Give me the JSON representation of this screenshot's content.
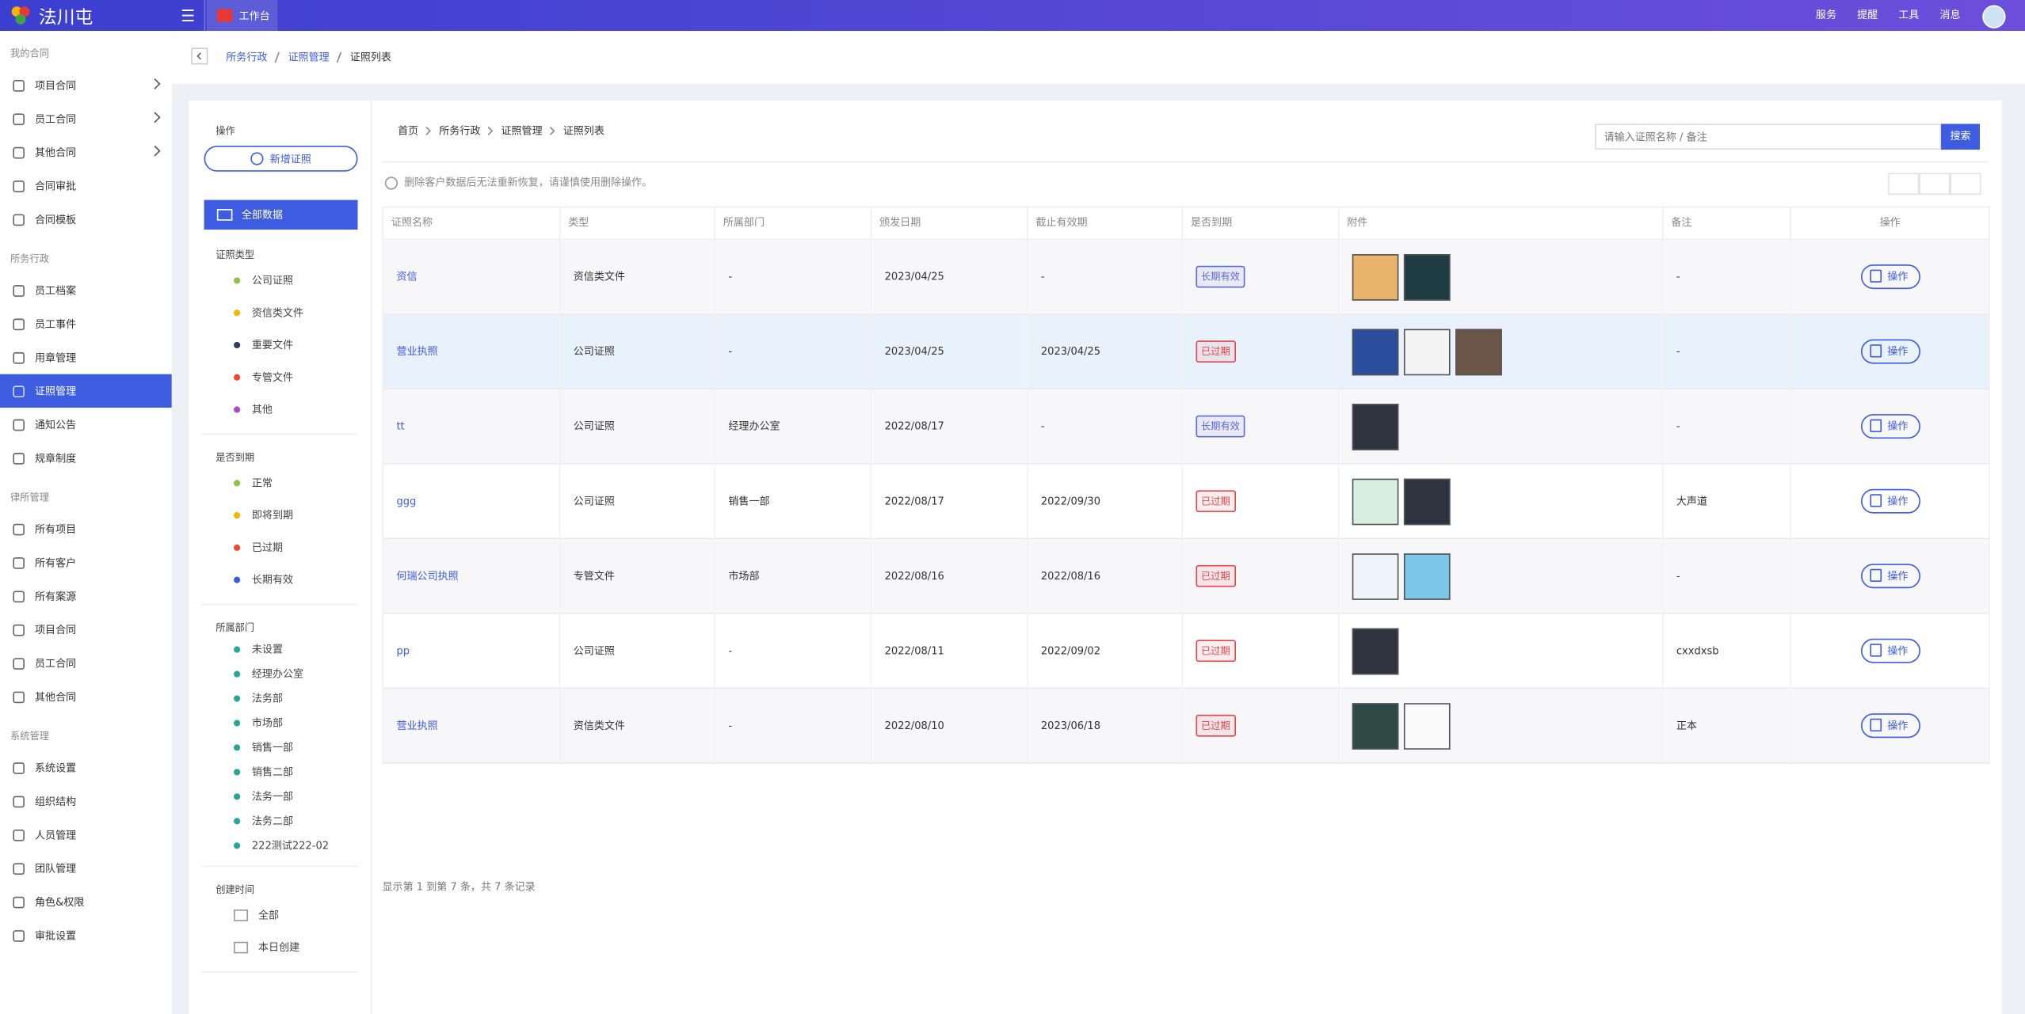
{
  "header": {
    "logo": "法川屯",
    "tab": "工作台",
    "links": [
      "服务",
      "提醒",
      "工具",
      "消息"
    ]
  },
  "sidebar": {
    "groups": [
      {
        "title": "我的合同",
        "items": [
          {
            "label": "项目合同",
            "expandable": true
          },
          {
            "label": "员工合同",
            "expandable": true
          },
          {
            "label": "其他合同",
            "expandable": true
          },
          {
            "label": "合同审批"
          },
          {
            "label": "合同模板"
          }
        ]
      },
      {
        "title": "所务行政",
        "items": [
          {
            "label": "员工档案"
          },
          {
            "label": "员工事件"
          },
          {
            "label": "用章管理"
          },
          {
            "label": "证照管理",
            "active": true
          },
          {
            "label": "通知公告"
          },
          {
            "label": "规章制度"
          }
        ]
      },
      {
        "title": "律所管理",
        "items": [
          {
            "label": "所有项目"
          },
          {
            "label": "所有客户"
          },
          {
            "label": "所有案源"
          },
          {
            "label": "项目合同"
          },
          {
            "label": "员工合同"
          },
          {
            "label": "其他合同"
          }
        ]
      },
      {
        "title": "系统管理",
        "items": [
          {
            "label": "系统设置"
          },
          {
            "label": "组织结构"
          },
          {
            "label": "人员管理"
          },
          {
            "label": "团队管理"
          },
          {
            "label": "角色&权限"
          },
          {
            "label": "审批设置"
          }
        ]
      }
    ]
  },
  "breadcrumb": [
    "所务行政",
    "证照管理",
    "证照列表"
  ],
  "filters": {
    "title": "操作",
    "add_button": "新增证照",
    "all": "全部数据",
    "sections": [
      {
        "title": "证照类型",
        "items": [
          {
            "label": "公司证照",
            "color": "#8bc34a"
          },
          {
            "label": "资信类文件",
            "color": "#f5b400"
          },
          {
            "label": "重要文件",
            "color": "#2f3e5c"
          },
          {
            "label": "专管文件",
            "color": "#f0492e"
          },
          {
            "label": "其他",
            "color": "#a64cc8"
          }
        ]
      },
      {
        "title": "是否到期",
        "items": [
          {
            "label": "正常",
            "color": "#8bc34a"
          },
          {
            "label": "即将到期",
            "color": "#f5b400"
          },
          {
            "label": "已过期",
            "color": "#f0492e"
          },
          {
            "label": "长期有效",
            "color": "#3a5bd9"
          }
        ]
      },
      {
        "title": "所属部门",
        "items": [
          {
            "label": "未设置",
            "color": "#26a69a"
          },
          {
            "label": "经理办公室",
            "color": "#26a69a"
          },
          {
            "label": "法务部",
            "color": "#26a69a"
          },
          {
            "label": "市场部",
            "color": "#26a69a"
          },
          {
            "label": "销售一部",
            "color": "#26a69a"
          },
          {
            "label": "销售二部",
            "color": "#26a69a"
          },
          {
            "label": "法务一部",
            "color": "#26a69a"
          },
          {
            "label": "法务二部",
            "color": "#26a69a"
          },
          {
            "label": "222测试222-02",
            "color": "#26a69a"
          }
        ]
      },
      {
        "title": "创建时间",
        "items": [
          {
            "label": "全部"
          },
          {
            "label": "本日创建"
          }
        ]
      }
    ]
  },
  "list": {
    "breadcrumb": [
      "首页",
      "所务行政",
      "证照管理",
      "证照列表"
    ],
    "search_placeholder": "请输入证照名称 / 备注",
    "search_button": "搜索",
    "notice": "删除客户数据后无法重新恢复，请谨慎使用删除操作。",
    "columns": [
      "证照名称",
      "类型",
      "所属部门",
      "颁发日期",
      "截止有效期",
      "是否到期",
      "附件",
      "备注",
      "操作"
    ],
    "rows": [
      {
        "name": "资信",
        "type": "资信类文件",
        "dept": "-",
        "issued": "2023/04/25",
        "expires": "-",
        "status": "长期有效",
        "status_color": "#5b6bd6",
        "attachments": [
          "#e8b36a",
          "#1f3b44"
        ],
        "note": "-",
        "action": "操作"
      },
      {
        "name": "营业执照",
        "type": "公司证照",
        "dept": "-",
        "issued": "2023/04/25",
        "expires": "2023/04/25",
        "status": "已过期",
        "status_color": "#e0474c",
        "attachments": [
          "#2a4d9c",
          "#f4f4f4",
          "#6b5548"
        ],
        "note": "-",
        "action": "操作",
        "highlight": true
      },
      {
        "name": "tt",
        "type": "公司证照",
        "dept": "经理办公室",
        "issued": "2022/08/17",
        "expires": "-",
        "status": "长期有效",
        "status_color": "#5b6bd6",
        "attachments": [
          "#2d3440"
        ],
        "note": "-",
        "action": "操作"
      },
      {
        "name": "ggg",
        "type": "公司证照",
        "dept": "销售一部",
        "issued": "2022/08/17",
        "expires": "2022/09/30",
        "status": "已过期",
        "status_color": "#e0474c",
        "attachments": [
          "#d9efe0",
          "#2d3440"
        ],
        "note": "大声道",
        "action": "操作"
      },
      {
        "name": "何瑞公司执照",
        "type": "专管文件",
        "dept": "市场部",
        "issued": "2022/08/16",
        "expires": "2022/08/16",
        "status": "已过期",
        "status_color": "#e0474c",
        "attachments": [
          "#eef4fb",
          "#7cc6e8"
        ],
        "note": "-",
        "action": "操作"
      },
      {
        "name": "pp",
        "type": "公司证照",
        "dept": "-",
        "issued": "2022/08/11",
        "expires": "2022/09/02",
        "status": "已过期",
        "status_color": "#e0474c",
        "attachments": [
          "#2d3440"
        ],
        "note": "cxxdxsb",
        "action": "操作"
      },
      {
        "name": "营业执照",
        "type": "资信类文件",
        "dept": "-",
        "issued": "2022/08/10",
        "expires": "2023/06/18",
        "status": "已过期",
        "status_color": "#e0474c",
        "attachments": [
          "#2f4a44",
          "#fafafa"
        ],
        "note": "正本",
        "action": "操作"
      }
    ],
    "footer": "显示第 1 到第 7 条，共 7 条记录"
  }
}
